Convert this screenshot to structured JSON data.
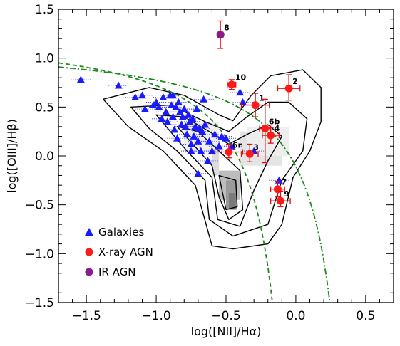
{
  "chart_data": {
    "type": "scatter",
    "xlabel": "log([NII]/Hα)",
    "ylabel": "log([OIII]/Hβ)",
    "xlim": [
      -1.7,
      0.7
    ],
    "ylim": [
      -1.5,
      1.5
    ],
    "xticks": [
      -1.5,
      -1.0,
      -0.5,
      0.0,
      0.5
    ],
    "xtick_labels": [
      "−1.5",
      "−1.0",
      "−0.5",
      "0.0",
      "0.5"
    ],
    "yticks": [
      -1.5,
      -1.0,
      -0.5,
      0.0,
      0.5,
      1.0,
      1.5
    ],
    "ytick_labels": [
      "−1.5",
      "−1.0",
      "−0.5",
      "0.0",
      "0.5",
      "1.0",
      "1.5"
    ],
    "legend": {
      "position": "bottom-left",
      "entries": [
        {
          "label": "Galaxies",
          "marker": "triangle",
          "color": "#1a1aff"
        },
        {
          "label": "X-ray AGN",
          "marker": "circle",
          "color": "#ff1a1a"
        },
        {
          "label": "IR AGN",
          "marker": "circle",
          "color": "#8b1a8b"
        }
      ]
    },
    "series": [
      {
        "name": "Galaxies",
        "marker": "triangle",
        "color": "#1a1aff",
        "points": [
          [
            -1.54,
            0.78
          ],
          [
            -1.27,
            0.72
          ],
          [
            -1.15,
            0.6
          ],
          [
            -1.1,
            0.62
          ],
          [
            -1.08,
            0.48
          ],
          [
            -1.02,
            0.52
          ],
          [
            -1.0,
            0.55
          ],
          [
            -0.98,
            0.5
          ],
          [
            -0.96,
            0.38
          ],
          [
            -0.95,
            0.6
          ],
          [
            -0.93,
            0.45
          ],
          [
            -0.92,
            0.35
          ],
          [
            -0.9,
            0.62
          ],
          [
            -0.89,
            0.52
          ],
          [
            -0.88,
            0.4
          ],
          [
            -0.87,
            0.27
          ],
          [
            -0.86,
            0.5
          ],
          [
            -0.85,
            0.18
          ],
          [
            -0.84,
            0.55
          ],
          [
            -0.83,
            0.45
          ],
          [
            -0.82,
            0.32
          ],
          [
            -0.81,
            0.4
          ],
          [
            -0.8,
            0.48
          ],
          [
            -0.79,
            0.3
          ],
          [
            -0.78,
            0.22
          ],
          [
            -0.77,
            0.42
          ],
          [
            -0.76,
            0.35
          ],
          [
            -0.75,
            0.12
          ],
          [
            -0.74,
            0.38
          ],
          [
            -0.73,
            0.2
          ],
          [
            -0.72,
            0.3
          ],
          [
            -0.71,
            0.48
          ],
          [
            -0.7,
            0.15
          ],
          [
            -0.69,
            0.28
          ],
          [
            -0.68,
            0.05
          ],
          [
            -0.67,
            0.25
          ],
          [
            -0.65,
            0.32
          ],
          [
            -0.63,
            -0.05
          ],
          [
            -0.62,
            0.15
          ],
          [
            -0.6,
            0.05
          ],
          [
            -0.58,
            0.22
          ],
          [
            -0.55,
            0.1
          ],
          [
            -0.53,
            0.2
          ],
          [
            -0.5,
            0.18
          ],
          [
            -0.46,
            0.1
          ],
          [
            -0.4,
            0.65
          ],
          [
            -0.38,
            0.55
          ],
          [
            -0.3,
            0.05
          ],
          [
            -0.12,
            -0.25
          ],
          [
            -0.75,
            0.05
          ],
          [
            -0.7,
            -0.18
          ],
          [
            -0.88,
            0.62
          ],
          [
            -0.66,
            0.58
          ]
        ]
      },
      {
        "name": "X-ray AGN",
        "marker": "circle",
        "color": "#ff1a1a",
        "points": [
          {
            "label": "1",
            "x": -0.29,
            "y": 0.52,
            "xerr": 0.1,
            "yerr": [
              0.12,
              0.12
            ]
          },
          {
            "label": "2",
            "x": -0.05,
            "y": 0.69,
            "xerr": 0.08,
            "yerr": [
              0.12,
              0.14
            ]
          },
          {
            "label": "3",
            "x": -0.33,
            "y": 0.02,
            "xerr": 0.06,
            "yerr": [
              0.08,
              0.1
            ]
          },
          {
            "label": "4",
            "x": -0.18,
            "y": 0.21,
            "xerr": 0.06,
            "yerr": [
              0.08,
              0.08
            ]
          },
          {
            "label": "6b",
            "x": -0.22,
            "y": 0.28,
            "xerr": 0.04,
            "yerr": [
              0.35,
              0.3
            ]
          },
          {
            "label": "6r",
            "x": -0.48,
            "y": 0.04,
            "xerr": 0.1,
            "yerr": [
              0.06,
              0.08
            ]
          },
          {
            "label": "7",
            "x": -0.13,
            "y": -0.34,
            "xerr": 0.05,
            "yerr": [
              0.08,
              0.08
            ]
          },
          {
            "label": "9",
            "x": -0.11,
            "y": -0.46,
            "xerr": 0.07,
            "yerr": [
              0.06,
              0.1
            ]
          },
          {
            "label": "10",
            "x": -0.46,
            "y": 0.73,
            "xerr": 0.03,
            "yerr": [
              0.05,
              0.05
            ]
          }
        ]
      },
      {
        "name": "IR AGN",
        "marker": "circle",
        "color": "#8b1a8b",
        "points": [
          {
            "label": "8",
            "x": -0.54,
            "y": 1.24,
            "xerr": 0.02,
            "yerr": [
              0.14,
              0.14
            ]
          }
        ]
      }
    ],
    "curves": [
      {
        "name": "Kauffmann",
        "style": "dashed",
        "color": "#1a8a1a"
      },
      {
        "name": "Kewley",
        "style": "dashdot",
        "color": "#1a8a1a"
      }
    ],
    "background": "density shading with black contours"
  }
}
